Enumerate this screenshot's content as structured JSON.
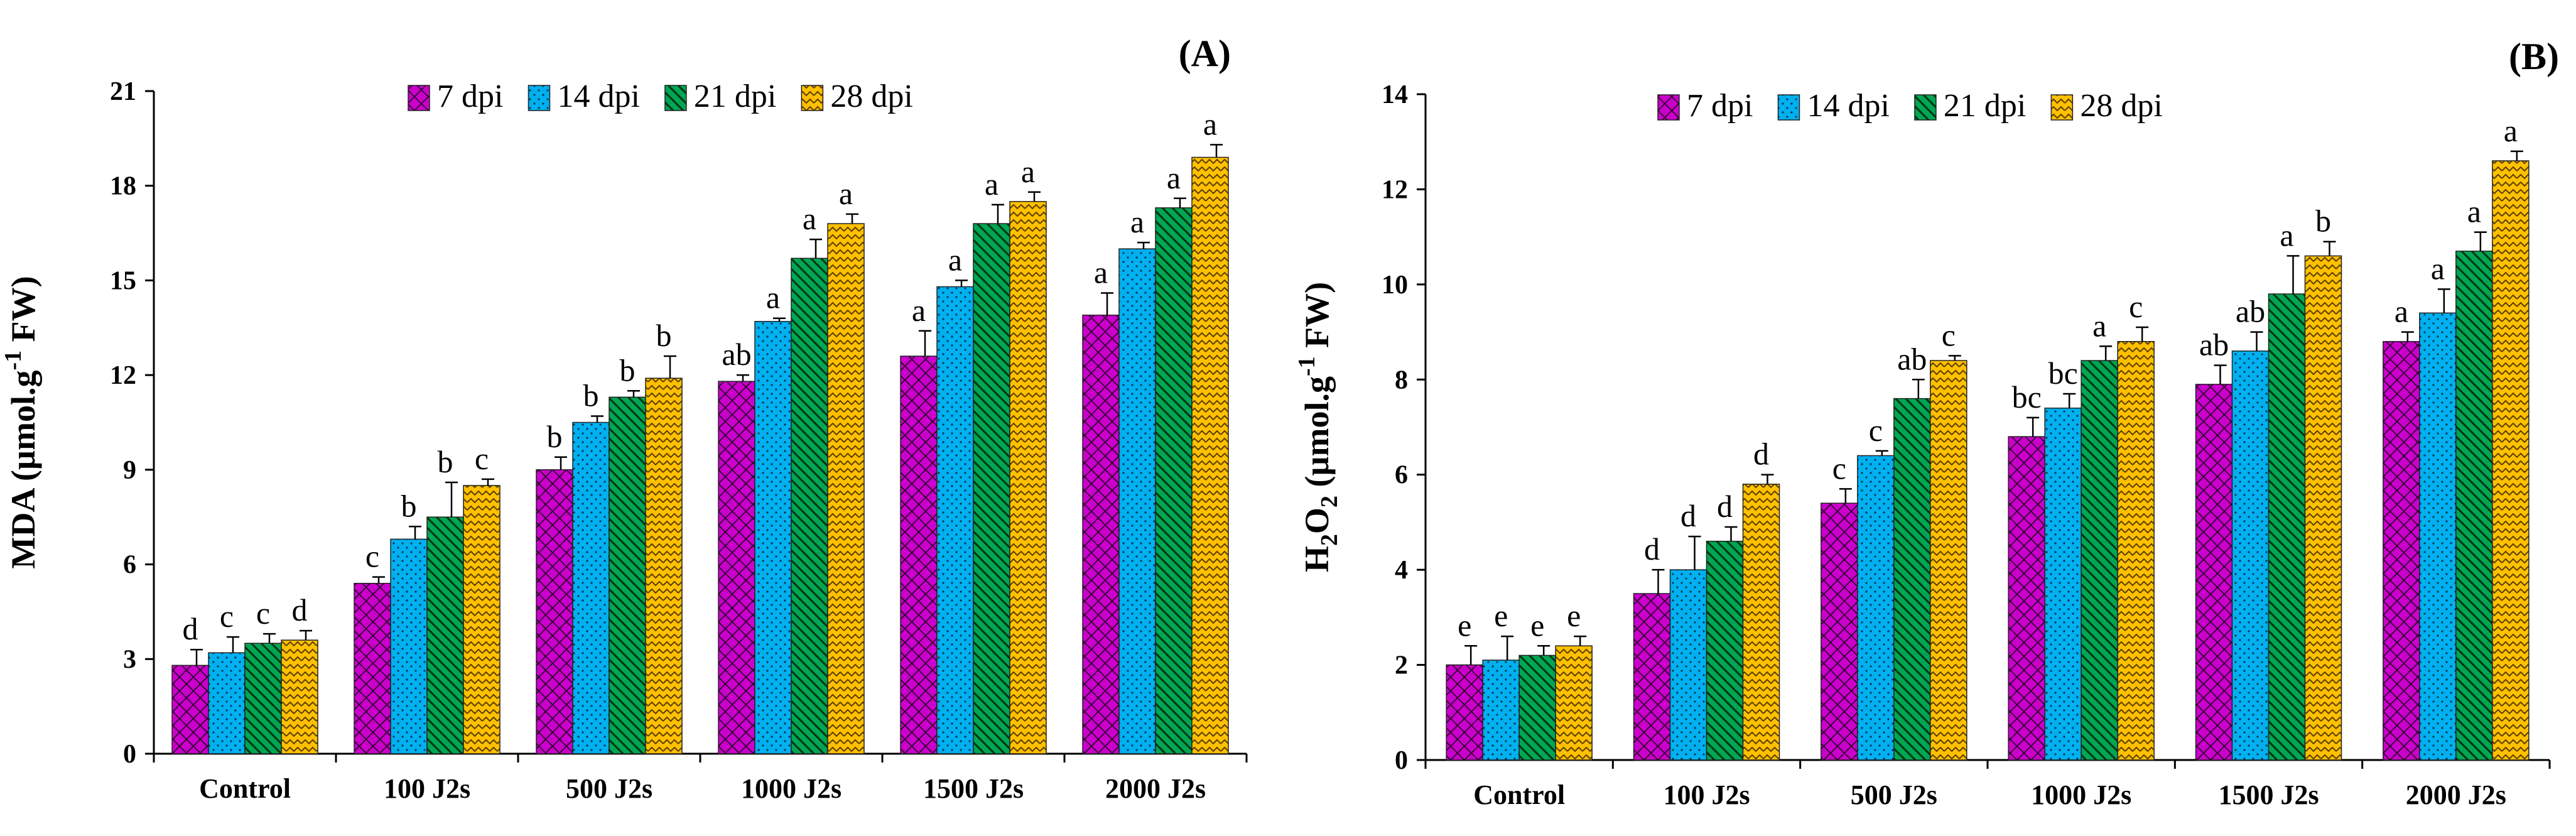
{
  "chart_data": [
    {
      "type": "bar",
      "panel_label": "(A)",
      "ylabel": "MDA (µmol.g-1 FW)",
      "ylabel_parts": {
        "main": "MDA (µmol.g",
        "sup": "-1",
        "tail": " FW)"
      },
      "ylim": [
        0,
        21
      ],
      "yticks": [
        0,
        3,
        6,
        9,
        12,
        15,
        18,
        21
      ],
      "categories": [
        "Control",
        "100 J2s",
        "500 J2s",
        "1000 J2s",
        "1500 J2s",
        "2000 J2s"
      ],
      "legend_placement": "top",
      "series": [
        {
          "name": "7 dpi",
          "color": "#cc00cc",
          "pattern": "crosshatch",
          "values": [
            2.8,
            5.4,
            9.0,
            11.8,
            12.6,
            13.9
          ],
          "errors": [
            0.5,
            0.2,
            0.4,
            0.2,
            0.8,
            0.7
          ],
          "letters": [
            "d",
            "c",
            "b",
            "ab",
            "a",
            "a"
          ]
        },
        {
          "name": "14 dpi",
          "color": "#00b0f0",
          "pattern": "dots",
          "values": [
            3.2,
            6.8,
            10.5,
            13.7,
            14.8,
            16.0
          ],
          "errors": [
            0.5,
            0.4,
            0.2,
            0.1,
            0.2,
            0.2
          ],
          "letters": [
            "c",
            "b",
            "b",
            "a",
            "a",
            "a"
          ]
        },
        {
          "name": "21 dpi",
          "color": "#00a651",
          "pattern": "diagonal",
          "values": [
            3.5,
            7.5,
            11.3,
            15.7,
            16.8,
            17.3
          ],
          "errors": [
            0.3,
            1.1,
            0.2,
            0.6,
            0.6,
            0.3
          ],
          "letters": [
            "c",
            "b",
            "b",
            "a",
            "a",
            "a"
          ]
        },
        {
          "name": "28 dpi",
          "color": "#ffc000",
          "pattern": "zigzag",
          "values": [
            3.6,
            8.5,
            11.9,
            16.8,
            17.5,
            18.9
          ],
          "errors": [
            0.3,
            0.2,
            0.7,
            0.3,
            0.3,
            0.4
          ],
          "letters": [
            "d",
            "c",
            "b",
            "a",
            "a",
            "a"
          ]
        }
      ]
    },
    {
      "type": "bar",
      "panel_label": "(B)",
      "ylabel": "H2O2 (µmol.g-1 FW)",
      "ylabel_parts": {
        "main": "H",
        "sub1": "2",
        "mid": "O",
        "sub2": "2",
        "rest": " (µmol.g",
        "sup": "-1",
        "tail": " FW)"
      },
      "ylim": [
        0,
        14
      ],
      "yticks": [
        0,
        2,
        4,
        6,
        8,
        10,
        12,
        14
      ],
      "categories": [
        "Control",
        "100 J2s",
        "500 J2s",
        "1000 J2s",
        "1500 J2s",
        "2000 J2s"
      ],
      "legend_placement": "top",
      "series": [
        {
          "name": "7 dpi",
          "color": "#cc00cc",
          "pattern": "crosshatch",
          "values": [
            2.0,
            3.5,
            5.4,
            6.8,
            7.9,
            8.8
          ],
          "errors": [
            0.4,
            0.5,
            0.3,
            0.4,
            0.4,
            0.2
          ],
          "letters": [
            "e",
            "d",
            "c",
            "bc",
            "ab",
            "a"
          ]
        },
        {
          "name": "14 dpi",
          "color": "#00b0f0",
          "pattern": "dots",
          "values": [
            2.1,
            4.0,
            6.4,
            7.4,
            8.6,
            9.4
          ],
          "errors": [
            0.5,
            0.7,
            0.1,
            0.3,
            0.4,
            0.5
          ],
          "letters": [
            "e",
            "d",
            "c",
            "bc",
            "ab",
            "a"
          ]
        },
        {
          "name": "21 dpi",
          "color": "#00a651",
          "pattern": "diagonal",
          "values": [
            2.2,
            4.6,
            7.6,
            8.4,
            9.8,
            10.7
          ],
          "errors": [
            0.2,
            0.3,
            0.4,
            0.3,
            0.8,
            0.4
          ],
          "letters": [
            "e",
            "d",
            "ab",
            "a",
            "a",
            "a"
          ]
        },
        {
          "name": "28 dpi",
          "color": "#ffc000",
          "pattern": "zigzag",
          "values": [
            2.4,
            5.8,
            8.4,
            8.8,
            10.6,
            12.6
          ],
          "errors": [
            0.2,
            0.2,
            0.1,
            0.3,
            0.3,
            0.2
          ],
          "letters": [
            "e",
            "d",
            "c",
            "c",
            "b",
            "a"
          ]
        }
      ]
    }
  ]
}
